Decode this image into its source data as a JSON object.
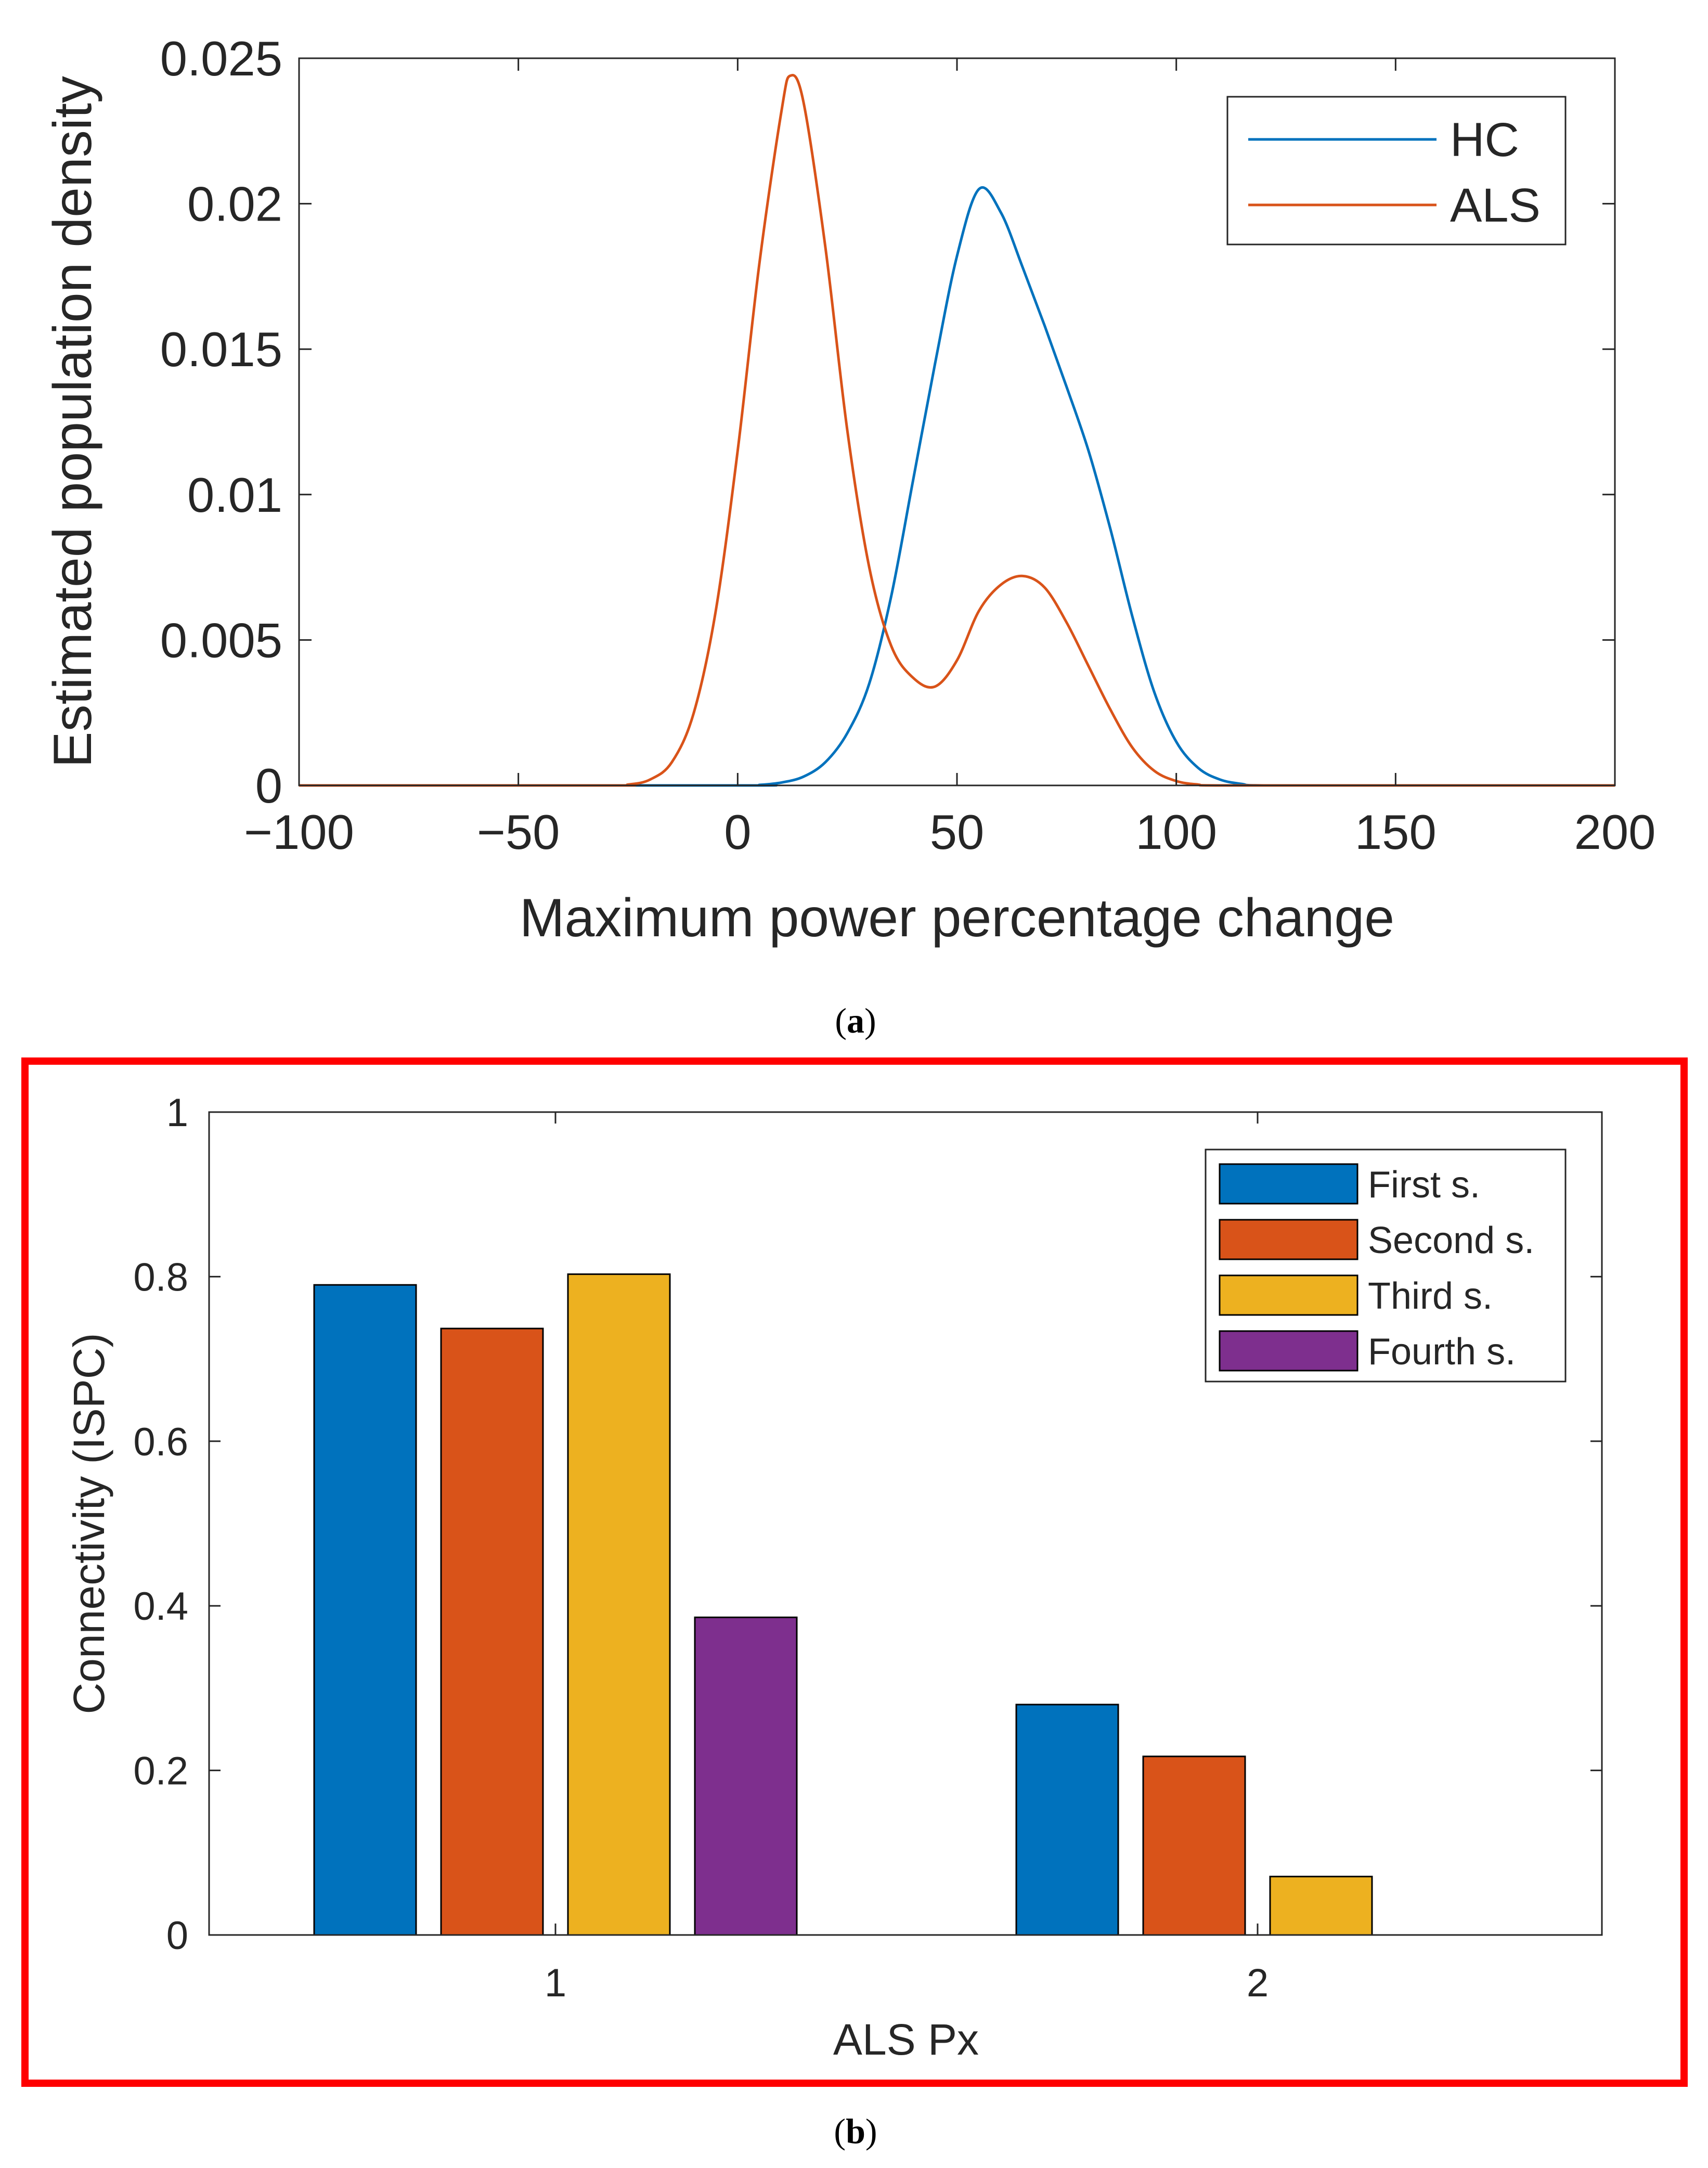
{
  "chart_data": [
    {
      "id": "a",
      "type": "line",
      "caption": "a",
      "xlabel": "Maximum power percentage change",
      "ylabel": "Estimated population density",
      "xlim": [
        -100,
        200
      ],
      "ylim": [
        0,
        0.025
      ],
      "xticks": [
        "−100",
        "−50",
        "0",
        "50",
        "100",
        "150",
        "200"
      ],
      "yticks": [
        "0",
        "0.005",
        "0.01",
        "0.015",
        "0.02",
        "0.025"
      ],
      "grid": false,
      "legend_position": "top-right",
      "series": [
        {
          "name": "HC",
          "color": "#0072BD",
          "x": [
            -100,
            0,
            5,
            10,
            15,
            20,
            25,
            30,
            35,
            40,
            45,
            50,
            55,
            60,
            65,
            70,
            75,
            80,
            85,
            90,
            95,
            100,
            105,
            110,
            115,
            120,
            150,
            200
          ],
          "y": [
            0,
            0,
            2e-05,
            0.0001,
            0.0003,
            0.0008,
            0.0018,
            0.0035,
            0.0065,
            0.0105,
            0.0145,
            0.0182,
            0.0205,
            0.0197,
            0.0178,
            0.0158,
            0.0137,
            0.0115,
            0.0088,
            0.0058,
            0.0032,
            0.0015,
            0.0006,
            0.0002,
            5e-05,
            0,
            0,
            0
          ]
        },
        {
          "name": "ALS",
          "color": "#D95319",
          "x": [
            -100,
            -30,
            -25,
            -20,
            -15,
            -10,
            -5,
            0,
            5,
            10,
            12,
            15,
            20,
            25,
            30,
            35,
            40,
            45,
            50,
            55,
            60,
            65,
            70,
            75,
            80,
            85,
            90,
            95,
            100,
            105,
            110,
            150,
            200
          ],
          "y": [
            0,
            0,
            3e-05,
            0.0002,
            0.0008,
            0.0025,
            0.006,
            0.0115,
            0.018,
            0.0232,
            0.0244,
            0.0235,
            0.0185,
            0.0122,
            0.0075,
            0.0048,
            0.0037,
            0.0034,
            0.0043,
            0.006,
            0.0069,
            0.0072,
            0.0068,
            0.0056,
            0.0041,
            0.0026,
            0.0013,
            0.0005,
            0.00015,
            3e-05,
            0,
            0,
            0
          ]
        }
      ]
    },
    {
      "id": "b",
      "type": "bar",
      "caption": "b",
      "xlabel": "ALS Px",
      "ylabel": "Connectivity (ISPC)",
      "categories": [
        "1",
        "2"
      ],
      "ylim": [
        0,
        1
      ],
      "yticks": [
        "0",
        "0.2",
        "0.4",
        "0.6",
        "0.8",
        "1"
      ],
      "grid": false,
      "legend_position": "top-right",
      "highlight_border_color": "#FF0000",
      "series": [
        {
          "name": "First s.",
          "color": "#0072BD",
          "values": [
            0.79,
            0.28
          ]
        },
        {
          "name": "Second s.",
          "color": "#D95319",
          "values": [
            0.737,
            0.217
          ]
        },
        {
          "name": "Third s.",
          "color": "#EDB120",
          "values": [
            0.803,
            0.071
          ]
        },
        {
          "name": "Fourth s.",
          "color": "#7E2F8E",
          "values": [
            0.386,
            0
          ]
        }
      ]
    }
  ]
}
